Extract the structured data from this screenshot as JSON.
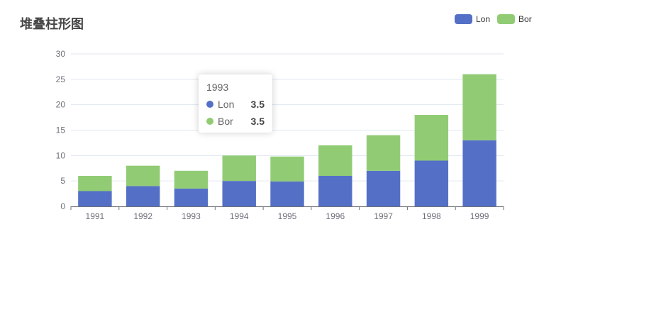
{
  "chart_data": {
    "type": "bar",
    "stacked": true,
    "title": "堆叠柱形图",
    "categories": [
      "1991",
      "1992",
      "1993",
      "1994",
      "1995",
      "1996",
      "1997",
      "1998",
      "1999"
    ],
    "series": [
      {
        "name": "Lon",
        "color": "#5470c6",
        "values": [
          3,
          4,
          3.5,
          5,
          4.9,
          6,
          7,
          9,
          13
        ]
      },
      {
        "name": "Bor",
        "color": "#91cc75",
        "values": [
          3,
          4,
          3.5,
          5,
          4.9,
          6,
          7,
          9,
          13
        ]
      }
    ],
    "ylim": [
      0,
      30
    ],
    "yticks": [
      0,
      5,
      10,
      15,
      20,
      25,
      30
    ],
    "grid": true,
    "legend": "top-right"
  },
  "tooltip": {
    "header": "1993",
    "rows": [
      {
        "name": "Lon",
        "value": "3.5",
        "color": "#5470c6"
      },
      {
        "name": "Bor",
        "value": "3.5",
        "color": "#91cc75"
      }
    ]
  }
}
